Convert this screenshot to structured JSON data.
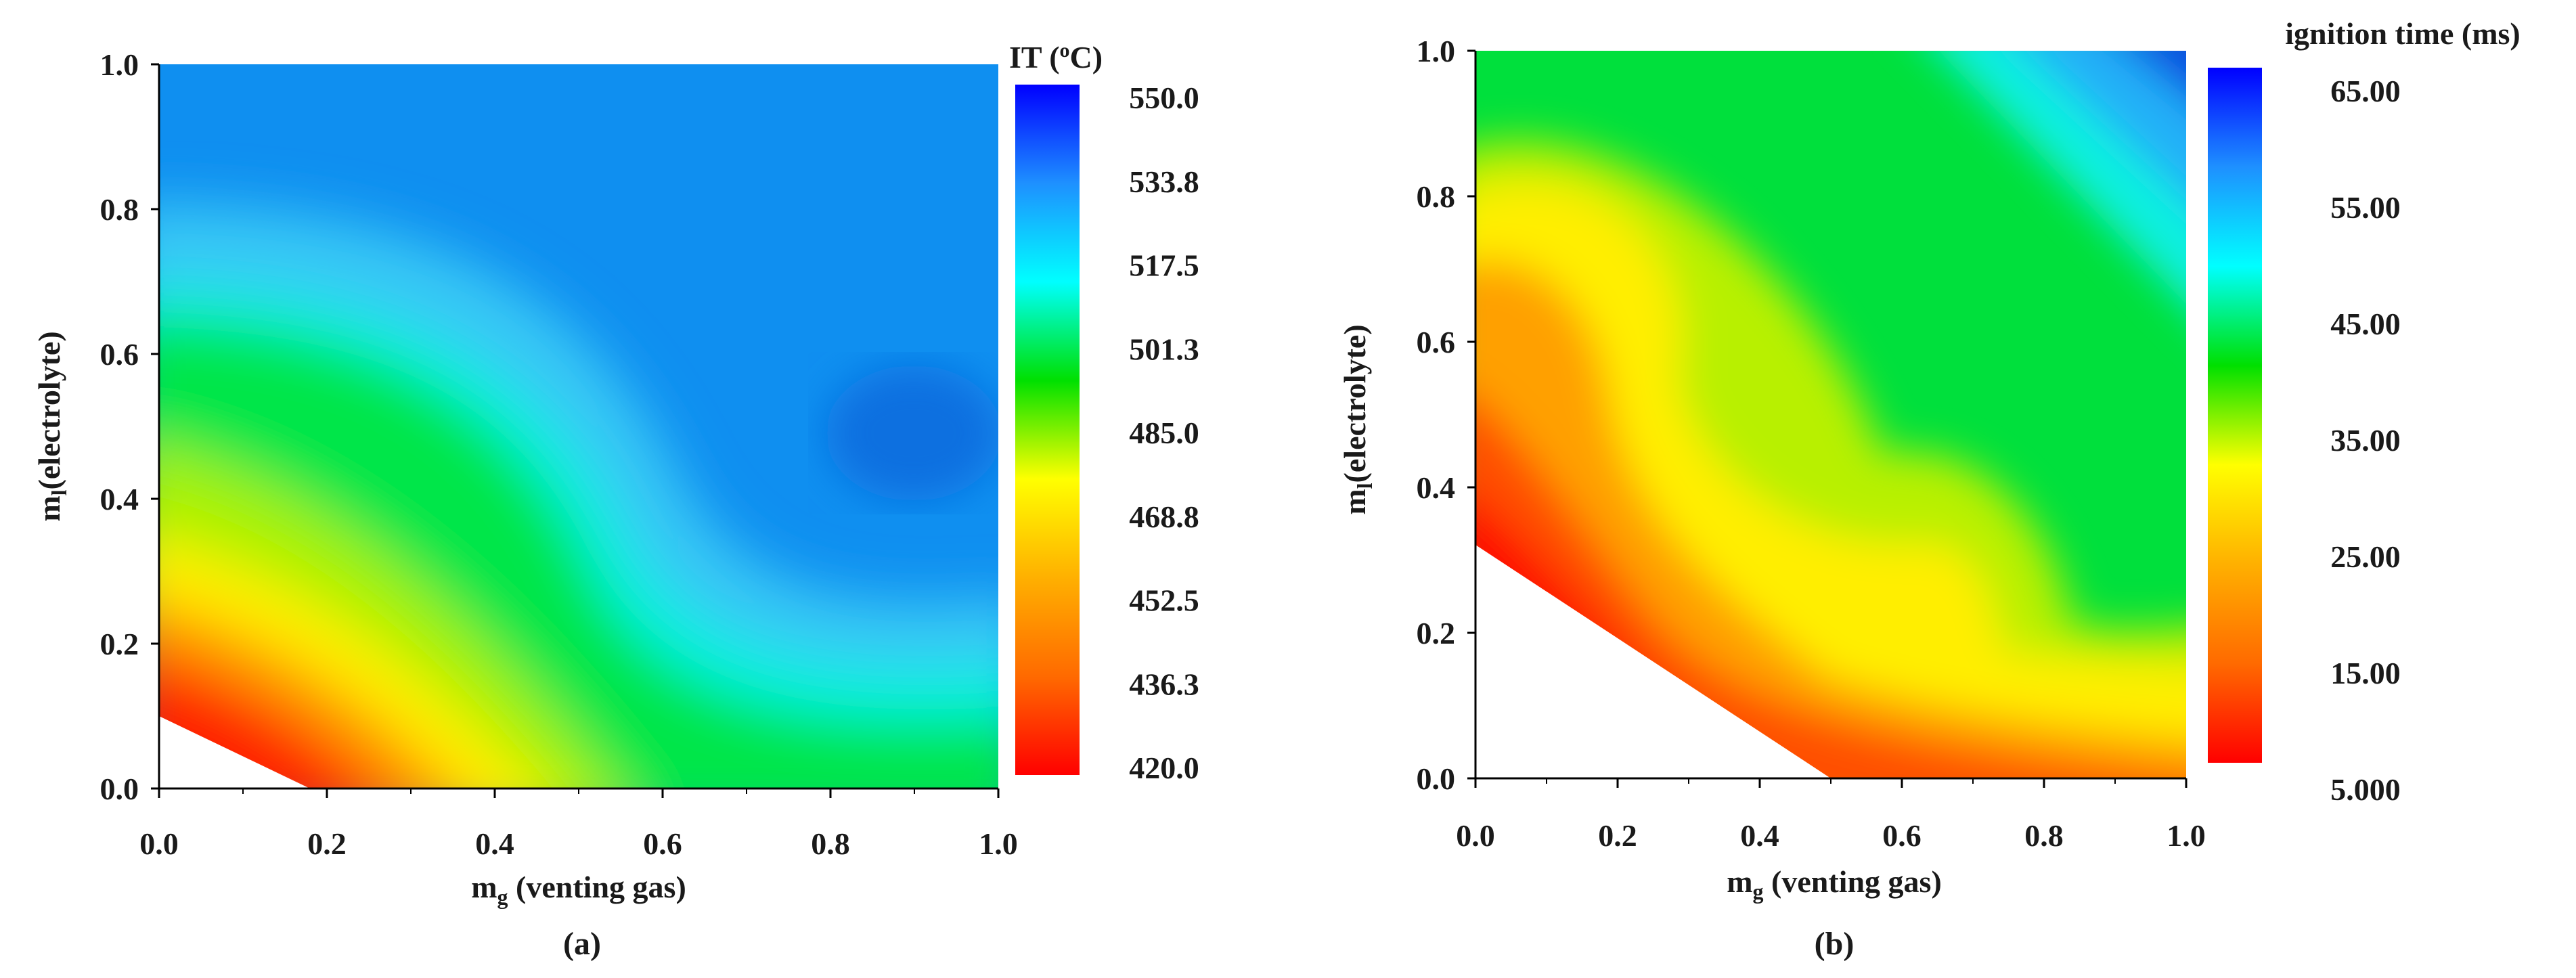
{
  "chart_data": [
    {
      "type": "heatmap",
      "xlabel_main": "m",
      "xlabel_sub": "g",
      "xlabel_tail": " (venting gas)",
      "ylabel_main": "m",
      "ylabel_sub": "l",
      "ylabel_tail": "(electrolyte)",
      "xlim": [
        0,
        1
      ],
      "ylim": [
        0,
        1
      ],
      "x_ticks": [
        "0.0",
        "0.2",
        "0.4",
        "0.6",
        "0.8",
        "1.0"
      ],
      "y_ticks": [
        "0.0",
        "0.2",
        "0.4",
        "0.6",
        "0.8",
        "1.0"
      ],
      "caption": "(a)",
      "colorbar": {
        "title_main": "IT (",
        "title_sup": "o",
        "title_tail": "C)",
        "range": [
          420.0,
          550.0
        ],
        "ticks": [
          "550.0",
          "533.8",
          "517.5",
          "501.3",
          "485.0",
          "468.8",
          "452.5",
          "436.3",
          "420.0"
        ],
        "stops": [
          "#ff0000",
          "#ff6a00",
          "#ffb000",
          "#ffff00",
          "#00e000",
          "#00ffff",
          "#1e90ff",
          "#0000ff"
        ]
      },
      "summary": "Ignition temperature is lowest near the origin (about 420) and highest around mg 0.9, ml 0.5 (about 540).",
      "invalid_region": "below the line from (0, 0.10) to (0.18, 0.0)"
    },
    {
      "type": "heatmap",
      "xlabel_main": "m",
      "xlabel_sub": "g",
      "xlabel_tail": " (venting gas)",
      "ylabel_main": "m",
      "ylabel_sub": "l",
      "ylabel_tail": "(electrolyte)",
      "xlim": [
        0,
        1
      ],
      "ylim": [
        0,
        1
      ],
      "x_ticks": [
        "0.0",
        "0.2",
        "0.4",
        "0.6",
        "0.8",
        "1.0"
      ],
      "y_ticks": [
        "0.0",
        "0.2",
        "0.4",
        "0.6",
        "0.8",
        "1.0"
      ],
      "caption": "(b)",
      "colorbar": {
        "title": "ignition time (ms)",
        "range": [
          5.0,
          65.0
        ],
        "ticks": [
          "65.00",
          "55.00",
          "45.00",
          "35.00",
          "25.00",
          "15.00",
          "5.000"
        ],
        "stops": [
          "#ff0000",
          "#ff6a00",
          "#ffb000",
          "#ffff00",
          "#00e000",
          "#00ffff",
          "#1e90ff",
          "#0000ff"
        ]
      },
      "summary": "Ignition time is about 5 ms along the lower-left boundary and rises to about 65 ms at the top-right corner.",
      "invalid_region": "below the line from (0, 0.32) to (0.50, 0.0)"
    }
  ]
}
